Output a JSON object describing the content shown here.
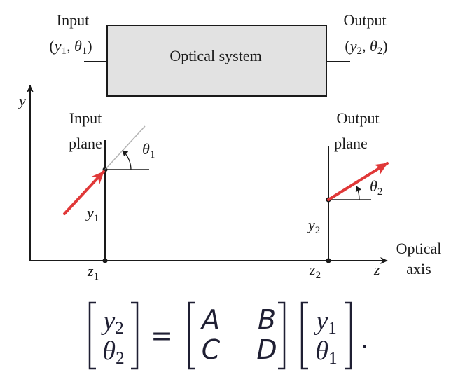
{
  "colors": {
    "box_fill": "#e2e2e2",
    "ray": "#e03838",
    "ink": "#1a1a1a",
    "guide": "#b4b4b4"
  },
  "system": {
    "box_label": "Optical system",
    "input_label": "Input",
    "input_params": {
      "open": "(",
      "y": "y",
      "y_sub": "1",
      "comma": ", ",
      "theta": "θ",
      "theta_sub": "1",
      "close": ")"
    },
    "output_label": "Output",
    "output_params": {
      "open": "(",
      "y": "y",
      "y_sub": "2",
      "comma": ", ",
      "theta": "θ",
      "theta_sub": "2",
      "close": ")"
    }
  },
  "axes": {
    "y_label": "y",
    "z_label": "z",
    "optical_axis_line1": "Optical",
    "optical_axis_line2": "axis"
  },
  "input_plane": {
    "title_line1": "Input",
    "title_line2": "plane",
    "angle": "θ",
    "angle_sub": "1",
    "height": "y",
    "height_sub": "1",
    "z": "z",
    "z_sub": "1"
  },
  "output_plane": {
    "title_line1": "Output",
    "title_line2": "plane",
    "angle": "θ",
    "angle_sub": "2",
    "height": "y",
    "height_sub": "2",
    "z": "z",
    "z_sub": "2"
  },
  "equation": {
    "lhs": [
      {
        "v": "y",
        "sub": "2"
      },
      {
        "v": "θ",
        "sub": "2"
      }
    ],
    "equals": "=",
    "matrix": [
      [
        "A",
        "B"
      ],
      [
        "C",
        "D"
      ]
    ],
    "rhs": [
      {
        "v": "y",
        "sub": "1"
      },
      {
        "v": "θ",
        "sub": "1"
      }
    ],
    "end": "."
  }
}
